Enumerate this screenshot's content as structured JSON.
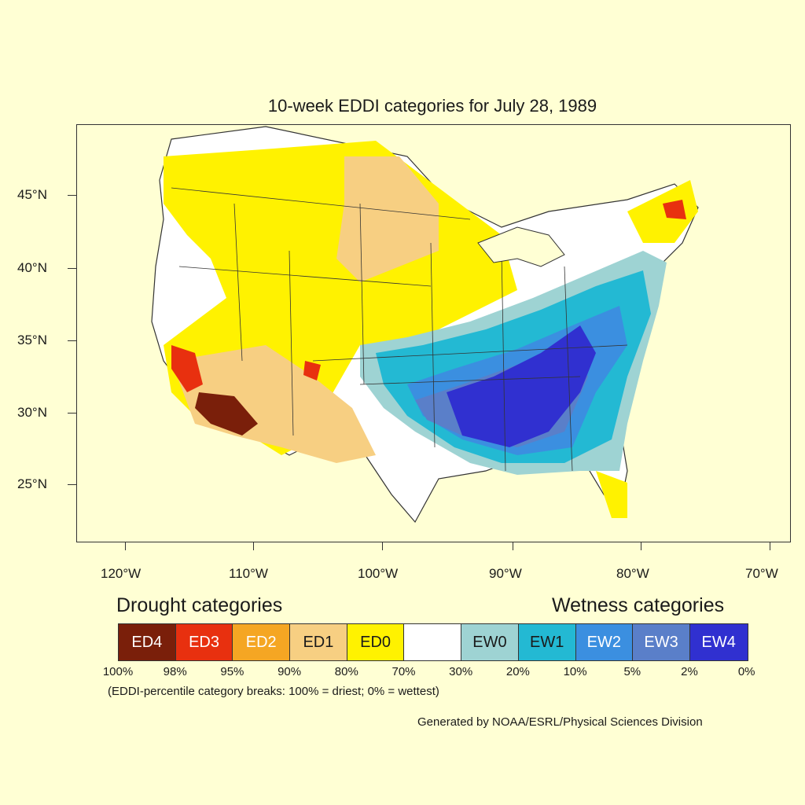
{
  "title": "10-week EDDI categories for July 28, 1989",
  "y_axis_labels": [
    "45°N",
    "40°N",
    "35°N",
    "30°N",
    "25°N"
  ],
  "x_axis_labels": [
    "120°W",
    "110°W",
    "100°W",
    "90°W",
    "80°W",
    "70°W"
  ],
  "legend": {
    "drought_title": "Drought categories",
    "wetness_title": "Wetness categories",
    "categories": [
      {
        "label": "ED4",
        "color": "#7a1f0a",
        "text_color": "#ffffff"
      },
      {
        "label": "ED3",
        "color": "#e8300f",
        "text_color": "#ffffff"
      },
      {
        "label": "ED2",
        "color": "#f5a623",
        "text_color": "#ffffff"
      },
      {
        "label": "ED1",
        "color": "#f7cf82",
        "text_color": "#1a1a1a"
      },
      {
        "label": "ED0",
        "color": "#fff200",
        "text_color": "#1a1a1a"
      },
      {
        "label": "",
        "color": "#ffffff",
        "text_color": "#1a1a1a"
      },
      {
        "label": "EW0",
        "color": "#9ed3d3",
        "text_color": "#1a1a1a"
      },
      {
        "label": "EW1",
        "color": "#23b9d3",
        "text_color": "#1a1a1a"
      },
      {
        "label": "EW2",
        "color": "#3b8fe0",
        "text_color": "#ffffff"
      },
      {
        "label": "EW3",
        "color": "#5a7fc9",
        "text_color": "#ffffff"
      },
      {
        "label": "EW4",
        "color": "#3030d0",
        "text_color": "#ffffff"
      }
    ],
    "breaks": [
      "100%",
      "98%",
      "95%",
      "90%",
      "80%",
      "70%",
      "30%",
      "20%",
      "10%",
      "5%",
      "2%",
      "0%"
    ],
    "note": "(EDDI-percentile category breaks: 100% = driest; 0% = wettest)"
  },
  "credit": "Generated by NOAA/ESRL/Physical Sciences Division"
}
